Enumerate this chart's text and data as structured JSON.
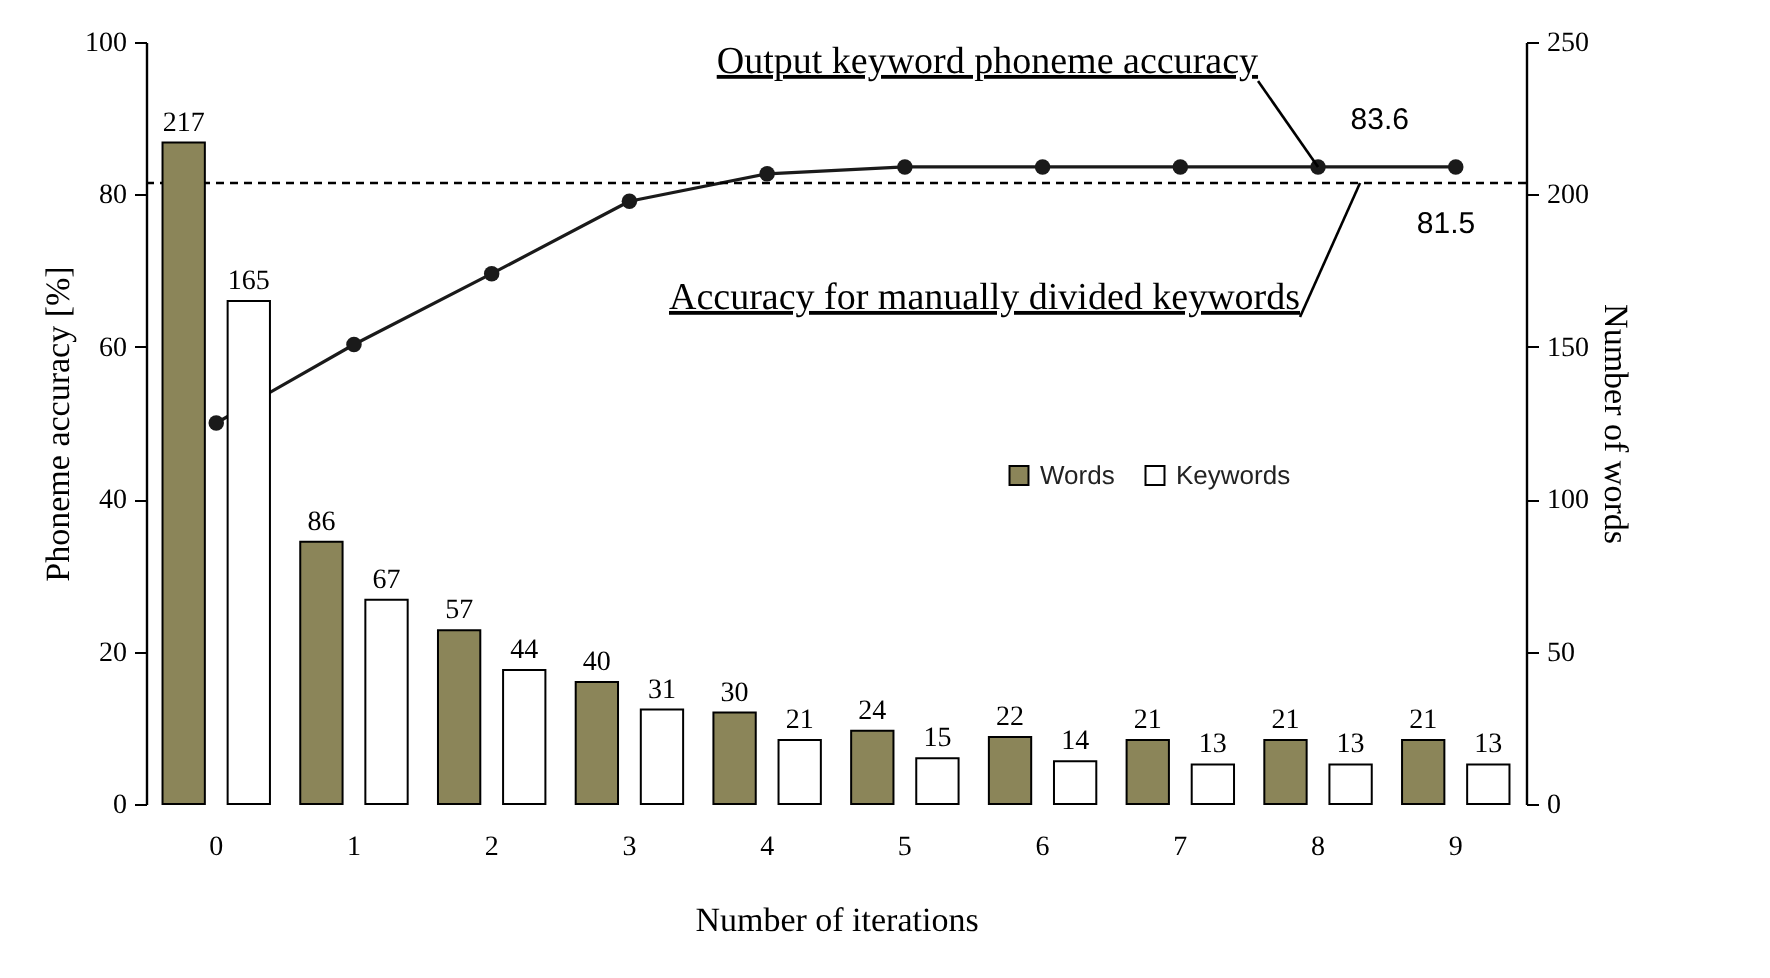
{
  "chart_data": {
    "type": "bar",
    "xlabel": "Number of iterations",
    "ylabel": "Phoneme accuracy [%]",
    "y2label": "Number of words",
    "categories": [
      "0",
      "1",
      "2",
      "3",
      "4",
      "5",
      "6",
      "7",
      "8",
      "9"
    ],
    "ylim": [
      0,
      100
    ],
    "yticks": [
      0,
      20,
      40,
      60,
      80,
      100
    ],
    "y2lim": [
      0,
      250
    ],
    "y2ticks": [
      0,
      50,
      100,
      150,
      200,
      250
    ],
    "series": [
      {
        "name": "Words",
        "color": "#8b8559",
        "axis": "y2",
        "values": [
          217,
          86,
          57,
          40,
          30,
          24,
          22,
          21,
          21,
          21
        ]
      },
      {
        "name": "Keywords",
        "color": "#ffffff",
        "axis": "y2",
        "values": [
          165,
          67,
          44,
          31,
          21,
          15,
          14,
          13,
          13,
          13
        ]
      },
      {
        "type": "line",
        "color": "#1a1a1a",
        "axis": "y",
        "marker": "circle",
        "line_style": "solid",
        "values": [
          50,
          60.3,
          69.6,
          79.1,
          82.7,
          83.6,
          83.6,
          83.6,
          83.6,
          83.6
        ],
        "value_labels": [
          null,
          null,
          null,
          null,
          null,
          null,
          null,
          null,
          null,
          "83.6"
        ]
      }
    ],
    "data_labels": true,
    "ref_lines": [
      {
        "axis": "y",
        "value": 81.5,
        "label": "81.5",
        "line_style": "dashed",
        "color": "#000000"
      }
    ],
    "annotations": [
      {
        "text": "Output keyword phoneme accuracy",
        "x": "8",
        "y": 83.6
      },
      {
        "text": "Accuracy for manually divided keywords",
        "x": "8",
        "y": 81.5
      }
    ],
    "legend": "right",
    "grid": false
  }
}
